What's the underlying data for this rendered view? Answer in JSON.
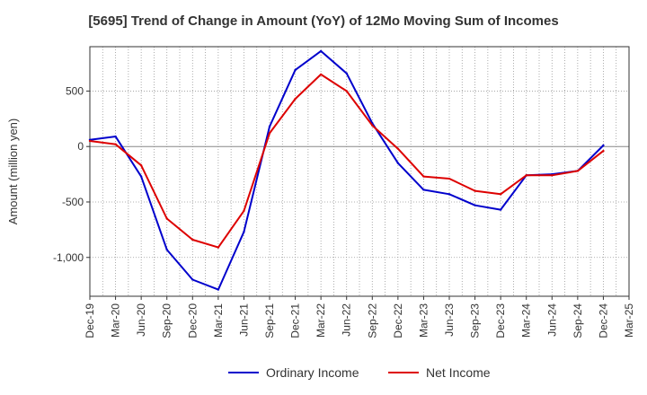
{
  "chart_data": {
    "type": "line",
    "title": "[5695]  Trend of Change in Amount (YoY) of 12Mo Moving Sum of Incomes",
    "xlabel": "",
    "ylabel": "Amount (million yen)",
    "ylim": [
      -1350,
      900
    ],
    "yticks": [
      500,
      0,
      -500,
      -1000
    ],
    "ytick_labels": [
      "500",
      "0",
      "-500",
      "-1,000"
    ],
    "categories": [
      "Dec-19",
      "Mar-20",
      "Jun-20",
      "Sep-20",
      "Dec-20",
      "Mar-21",
      "Jun-21",
      "Sep-21",
      "Dec-21",
      "Mar-22",
      "Jun-22",
      "Sep-22",
      "Dec-22",
      "Mar-23",
      "Jun-23",
      "Sep-23",
      "Dec-23",
      "Mar-24",
      "Jun-24",
      "Sep-24",
      "Dec-24",
      "Mar-25"
    ],
    "grid": true,
    "legend_position": "bottom",
    "series": [
      {
        "name": "Ordinary Income",
        "color": "#0000cc",
        "values": [
          60,
          90,
          -270,
          -930,
          -1200,
          -1290,
          -770,
          180,
          690,
          860,
          660,
          210,
          -150,
          -390,
          -430,
          -530,
          -570,
          -260,
          -250,
          -220,
          10,
          null
        ]
      },
      {
        "name": "Net Income",
        "color": "#dd0000",
        "values": [
          50,
          20,
          -170,
          -650,
          -840,
          -910,
          -580,
          120,
          430,
          650,
          500,
          190,
          -20,
          -270,
          -290,
          -400,
          -430,
          -260,
          -260,
          -220,
          -40,
          null
        ]
      }
    ]
  }
}
